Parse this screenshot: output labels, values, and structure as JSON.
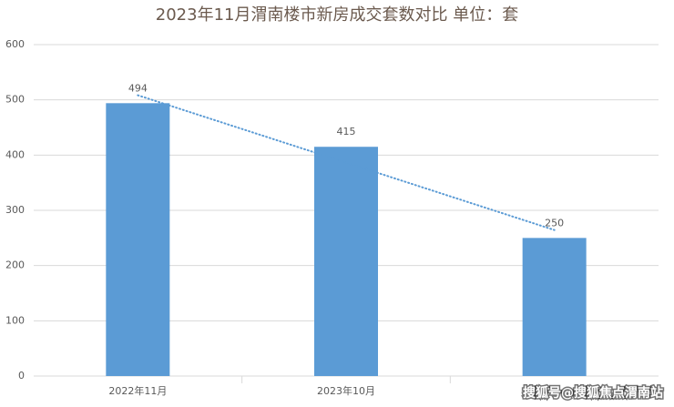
{
  "chart_data": {
    "type": "bar",
    "title": "2023年11月渭南楼市新房成交套数对比 单位：套",
    "categories": [
      "2022年11月",
      "2023年10月",
      null
    ],
    "values": [
      494,
      415,
      250
    ],
    "color": "#5b9bd5",
    "ylim": [
      0,
      600
    ],
    "yticks": [
      0,
      100,
      200,
      300,
      400,
      500,
      600
    ],
    "grid": true,
    "trendline": true
  },
  "watermark": "搜狐号@搜狐焦点渭南站"
}
